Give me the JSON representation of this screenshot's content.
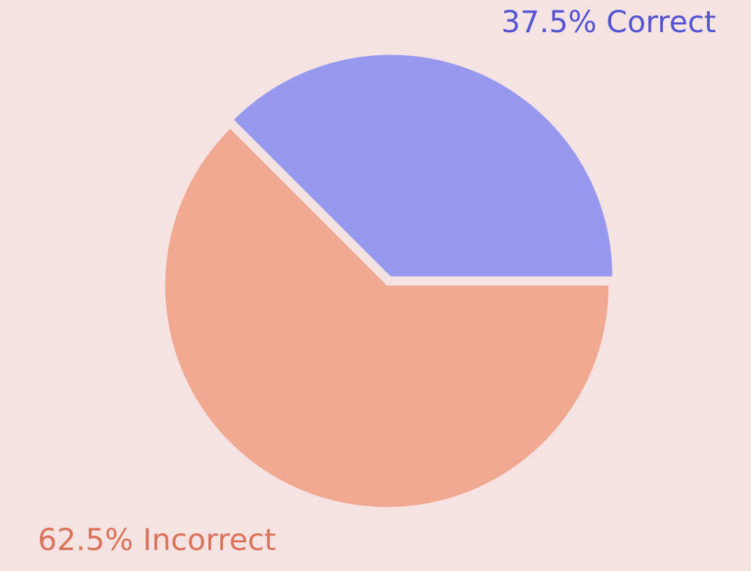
{
  "chart_data": {
    "type": "pie",
    "slices": [
      {
        "name": "Correct",
        "value": 37.5,
        "label": "37.5% Correct",
        "color": "#9799ef",
        "label_color": "#5254d4"
      },
      {
        "name": "Incorrect",
        "value": 62.5,
        "label": "62.5% Incorrect",
        "color": "#f0a990",
        "label_color": "#d9735a"
      }
    ],
    "background": "#f5e3e3"
  }
}
